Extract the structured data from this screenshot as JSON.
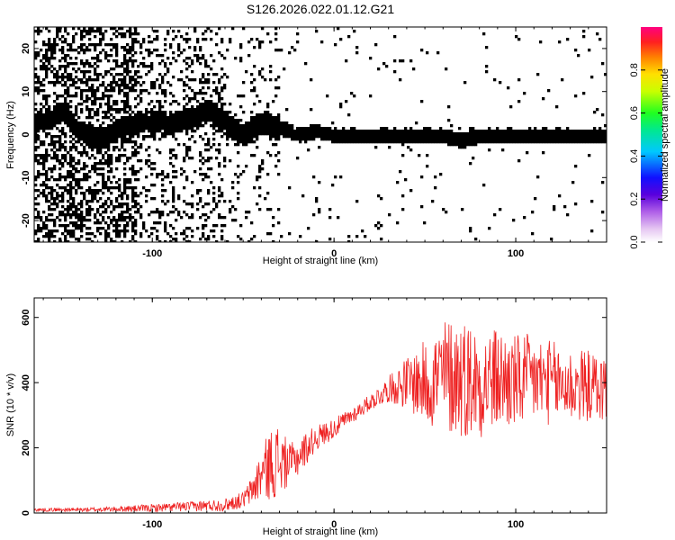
{
  "title": "S126.2026.022.01.12.G21",
  "colors": {
    "snr_line": "#ee2020",
    "background": "#ffffff"
  },
  "chart_data": [
    {
      "type": "heatmap",
      "name": "spectrogram",
      "xlabel": "Height of straight line (km)",
      "ylabel": "Frequency (Hz)",
      "xlim": [
        -165,
        150
      ],
      "ylim": [
        -25,
        25
      ],
      "xticks": [
        -100,
        0,
        100
      ],
      "xtick_labels": [
        "-100",
        "0",
        "100"
      ],
      "yticks": [
        -20,
        -10,
        0,
        10,
        20
      ],
      "ytick_labels": [
        "-20",
        "-10",
        "0",
        "10",
        "20"
      ],
      "ridge_x": [
        -165,
        -150,
        -140,
        -130,
        -120,
        -110,
        -100,
        -90,
        -80,
        -70,
        -60,
        -50,
        -40,
        -35,
        -30,
        -20,
        -10,
        0,
        10,
        20,
        30,
        40,
        50,
        60,
        70,
        80,
        90,
        100,
        110,
        120,
        130,
        140,
        150
      ],
      "ridge_y": [
        3,
        5,
        1,
        -1,
        1,
        3,
        3,
        3,
        4,
        6,
        3,
        0,
        3,
        2,
        2,
        0,
        1,
        0,
        0,
        0,
        0,
        0,
        0,
        0,
        -1,
        0,
        0,
        0,
        0,
        0,
        0,
        0,
        0
      ],
      "colorbar": {
        "label": "Normalized spectral amplitude",
        "range": [
          0,
          1
        ],
        "ticks": [
          0.0,
          0.2,
          0.4,
          0.6,
          0.8
        ],
        "tick_labels": [
          "0.0",
          "0.2",
          "0.4",
          "0.6",
          "0.8"
        ]
      }
    },
    {
      "type": "line",
      "name": "snr",
      "xlabel": "Height of straight line (km)",
      "ylabel": "SNR (10 * v/v)",
      "xlim": [
        -165,
        150
      ],
      "ylim": [
        0,
        660
      ],
      "xticks": [
        -100,
        0,
        100
      ],
      "xtick_labels": [
        "-100",
        "0",
        "100"
      ],
      "yticks": [
        0,
        200,
        400,
        600
      ],
      "ytick_labels": [
        "0",
        "200",
        "400",
        "600"
      ],
      "envelope_x": [
        -165,
        -140,
        -120,
        -100,
        -80,
        -60,
        -50,
        -45,
        -40,
        -35,
        -30,
        -25,
        -20,
        -10,
        0,
        10,
        20,
        30,
        40,
        50,
        60,
        70,
        80,
        90,
        100,
        110,
        120,
        130,
        140,
        150
      ],
      "envelope_mean": [
        10,
        10,
        12,
        15,
        20,
        25,
        40,
        70,
        120,
        150,
        160,
        150,
        170,
        230,
        260,
        300,
        340,
        380,
        400,
        400,
        420,
        420,
        400,
        410,
        400,
        410,
        400,
        390,
        390,
        380
      ],
      "envelope_amp": [
        5,
        6,
        8,
        12,
        15,
        20,
        25,
        45,
        80,
        110,
        120,
        60,
        60,
        40,
        30,
        25,
        25,
        40,
        80,
        130,
        180,
        190,
        170,
        160,
        150,
        140,
        130,
        120,
        110,
        100
      ]
    }
  ]
}
